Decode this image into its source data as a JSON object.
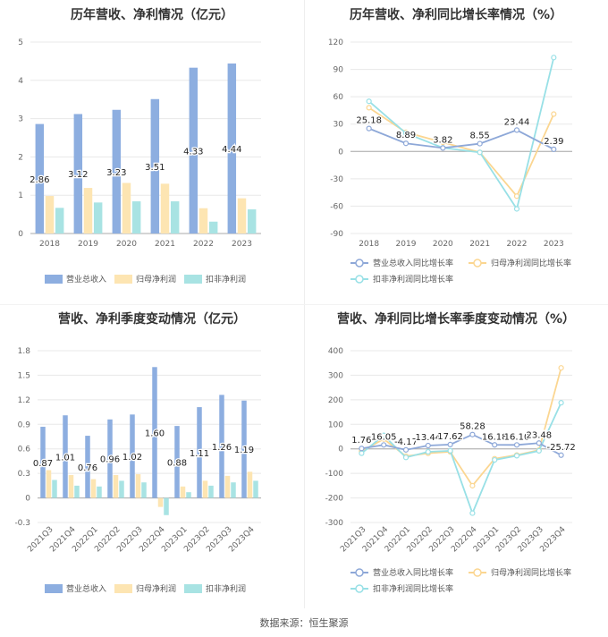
{
  "source": "数据来源：恒生聚源",
  "colors": {
    "rev": "#8daee0",
    "np": "#fde5b2",
    "ded": "#a8e3e3",
    "rev_line": "#8ea8d8",
    "np_line": "#fbd691",
    "ded_line": "#98e0e6"
  },
  "chart_data": [
    {
      "id": "annual_bar",
      "type": "bar",
      "title": "历年营收、净利情况（亿元）",
      "categories": [
        "2018",
        "2019",
        "2020",
        "2021",
        "2022",
        "2023"
      ],
      "ylim": [
        0,
        5
      ],
      "yticks": [
        0,
        1,
        2,
        3,
        4,
        5
      ],
      "series": [
        {
          "name": "营业总收入",
          "values": [
            2.86,
            3.12,
            3.23,
            3.51,
            4.33,
            4.44
          ],
          "labels": [
            "2.86",
            "3.12",
            "3.23",
            "3.51",
            "4.33",
            "4.44"
          ]
        },
        {
          "name": "归母净利润",
          "values": [
            0.98,
            1.19,
            1.32,
            1.3,
            0.66,
            0.92
          ]
        },
        {
          "name": "扣非净利润",
          "values": [
            0.67,
            0.81,
            0.84,
            0.84,
            0.31,
            0.63
          ]
        }
      ]
    },
    {
      "id": "annual_growth",
      "type": "line",
      "title": "历年营收、净利同比增长率情况（%）",
      "categories": [
        "2018",
        "2019",
        "2020",
        "2021",
        "2022",
        "2023"
      ],
      "ylim": [
        -90,
        120
      ],
      "yticks": [
        -90,
        -60,
        -30,
        0,
        30,
        60,
        90,
        120
      ],
      "series": [
        {
          "name": "营业总收入同比增长率",
          "values": [
            25.18,
            8.89,
            3.82,
            8.55,
            23.44,
            2.39
          ],
          "labels": [
            "25.18",
            "8.89",
            "3.82",
            "8.55",
            "23.44",
            "2.39"
          ]
        },
        {
          "name": "归母净利润同比增长率",
          "values": [
            48,
            21,
            10,
            -1,
            -49,
            41
          ]
        },
        {
          "name": "扣非净利润同比增长率",
          "values": [
            55,
            20,
            4,
            -1,
            -63,
            103
          ]
        }
      ]
    },
    {
      "id": "quarter_bar",
      "type": "bar",
      "title": "营收、净利季度变动情况（亿元）",
      "categories": [
        "2021Q3",
        "2021Q4",
        "2022Q1",
        "2022Q2",
        "2022Q3",
        "2022Q4",
        "2023Q1",
        "2023Q2",
        "2023Q3",
        "2023Q4"
      ],
      "ylim": [
        -0.3,
        1.8
      ],
      "yticks": [
        -0.3,
        0,
        0.3,
        0.6,
        0.9,
        1.2,
        1.5,
        1.8
      ],
      "series": [
        {
          "name": "营业总收入",
          "values": [
            0.87,
            1.01,
            0.76,
            0.96,
            1.02,
            1.6,
            0.88,
            1.11,
            1.26,
            1.19
          ],
          "labels": [
            "0.87",
            "1.01",
            "0.76",
            "0.96",
            "1.02",
            "1.60",
            "0.88",
            "1.11",
            "1.26",
            "1.19"
          ]
        },
        {
          "name": "归母净利润",
          "values": [
            0.34,
            0.28,
            0.23,
            0.28,
            0.29,
            -0.11,
            0.14,
            0.21,
            0.27,
            0.32
          ]
        },
        {
          "name": "扣非净利润",
          "values": [
            0.22,
            0.15,
            0.14,
            0.21,
            0.19,
            -0.21,
            0.07,
            0.15,
            0.19,
            0.21
          ]
        }
      ]
    },
    {
      "id": "quarter_growth",
      "type": "line",
      "title": "营收、净利同比增长率季度变动情况（%）",
      "categories": [
        "2021Q3",
        "2021Q4",
        "2022Q1",
        "2022Q2",
        "2022Q3",
        "2022Q4",
        "2023Q1",
        "2023Q2",
        "2023Q3",
        "2023Q4"
      ],
      "ylim": [
        -300,
        400
      ],
      "yticks": [
        -300,
        -200,
        -100,
        0,
        100,
        200,
        300,
        400
      ],
      "series": [
        {
          "name": "营业总收入同比增长率",
          "values": [
            1.76,
            16.05,
            -4.17,
            13.44,
            17.62,
            58.28,
            16.18,
            16.1,
            23.48,
            -25.72
          ],
          "labels": [
            "1.76",
            "16.05",
            "-4.17",
            "13.44",
            "17.62",
            "58.28",
            "16.18",
            "16.10",
            "23.48",
            "-25.72"
          ]
        },
        {
          "name": "归母净利润同比增长率",
          "values": [
            -10,
            40,
            -30,
            -18,
            -12,
            -150,
            -40,
            -25,
            -5,
            330
          ]
        },
        {
          "name": "扣非净利润同比增长率",
          "values": [
            -18,
            55,
            -35,
            -12,
            -8,
            -262,
            -45,
            -28,
            -8,
            188
          ]
        }
      ]
    }
  ]
}
